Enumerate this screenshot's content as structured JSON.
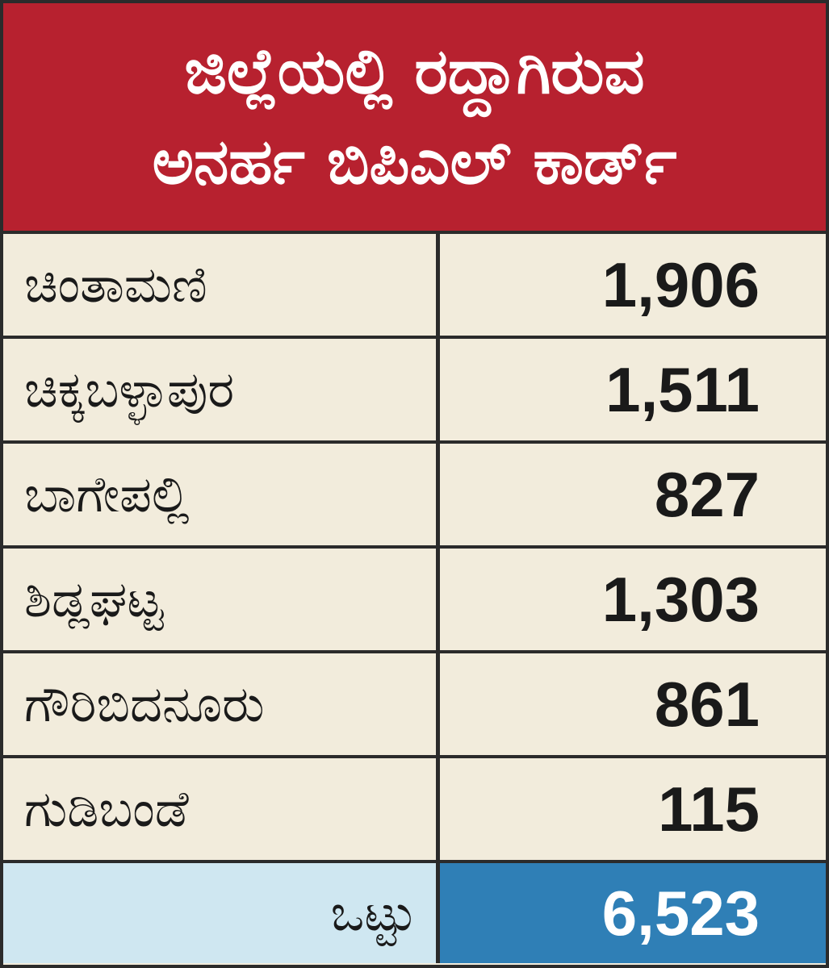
{
  "header": {
    "title_lines": [
      "ಜಿಲ್ಲೆಯಲ್ಲಿ ರದ್ದಾಗಿರುವ",
      "ಅನರ್ಹ ಬಿಪಿಎಲ್ ಕಾರ್ಡ್"
    ]
  },
  "table": {
    "rows": [
      [
        "ಚಿಂತಾಮಣಿ",
        "1,906"
      ],
      [
        "ಚಿಕ್ಕಬಳ್ಳಾಪುರ",
        "1,511"
      ],
      [
        "ಬಾಗೇಪಲ್ಲಿ",
        "827"
      ],
      [
        "ಶಿಡ್ಲಘಟ್ಟ",
        "1,303"
      ],
      [
        "ಗೌರಿಬಿದನೂರು",
        "861"
      ],
      [
        "ಗುಡಿಬಂಡೆ",
        "115"
      ]
    ],
    "total": [
      "ಒಟ್ಟು",
      "6,523"
    ]
  }
}
